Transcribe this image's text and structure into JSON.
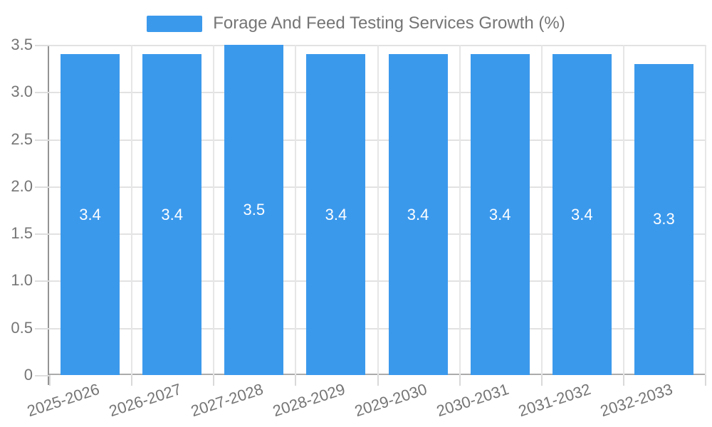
{
  "chart_data": {
    "type": "bar",
    "title": "Forage And Feed Testing Services Growth (%)",
    "legend_entries": [
      "Forage And Feed Testing Services Growth (%)"
    ],
    "legend_position": "top-center",
    "categories": [
      "2025-2026",
      "2026-2027",
      "2027-2028",
      "2028-2029",
      "2029-2030",
      "2030-2031",
      "2031-2032",
      "2032-2033"
    ],
    "values": [
      3.4,
      3.4,
      3.5,
      3.4,
      3.4,
      3.4,
      3.4,
      3.3
    ],
    "value_labels": [
      "3.4",
      "3.4",
      "3.5",
      "3.4",
      "3.4",
      "3.4",
      "3.4",
      "3.3"
    ],
    "xlabel": "",
    "ylabel": "",
    "ylim": [
      0,
      3.5
    ],
    "yticks": [
      0,
      0.5,
      1,
      1.5,
      2,
      2.5,
      3,
      3.5
    ],
    "ytick_labels": [
      "0",
      "0.5",
      "1.0",
      "1.5",
      "2.0",
      "2.5",
      "3.0",
      "3.5"
    ],
    "grid": true,
    "bar_label_position": "center",
    "xtick_label_rotation_deg": -18,
    "colors": {
      "bar": "#3B99EC",
      "grid": "#E2E2E2",
      "axis": "#9E9E9E",
      "text": "#757575",
      "bar_label": "#FFFFFF",
      "background": "#FFFFFF"
    }
  }
}
